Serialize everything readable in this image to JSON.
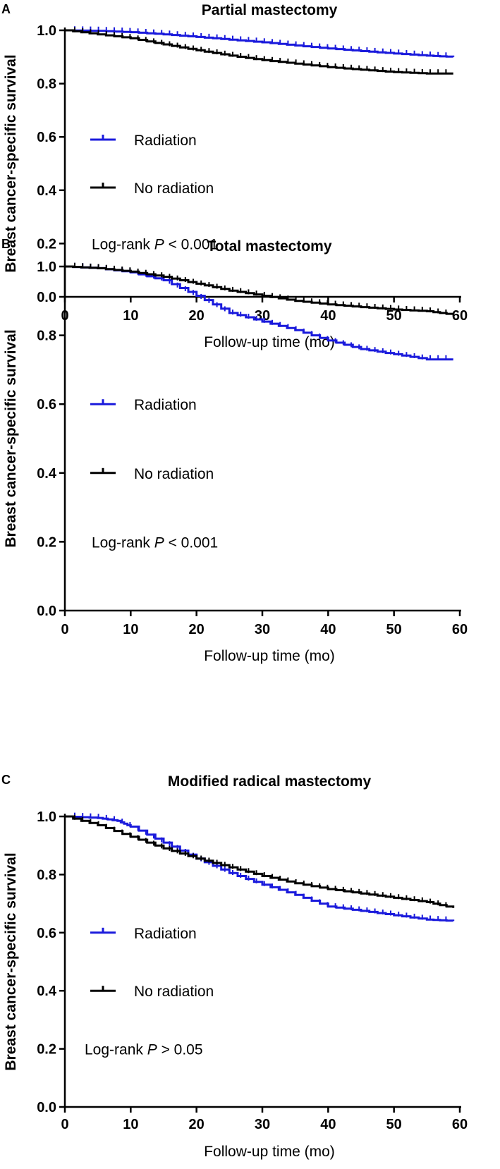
{
  "chart_data": [
    {
      "type": "line",
      "panel_label": "A",
      "title": "Partial mastectomy",
      "xlabel": "Follow-up time (mo)",
      "ylabel": "Breast cancer-specific survival",
      "xlim": [
        0,
        60
      ],
      "ylim": [
        0,
        1
      ],
      "x_ticks": [
        "0",
        "10",
        "20",
        "30",
        "40",
        "50",
        "60"
      ],
      "y_ticks": [
        "0.0",
        "0.2",
        "0.4",
        "0.6",
        "0.8",
        "1.0"
      ],
      "legend": {
        "placement": "middle-left"
      },
      "annotation": {
        "text": "Log-rank ",
        "italic": "P",
        "suffix": " < 0.001"
      },
      "series": [
        {
          "name": "Radiation",
          "color": "#1a1adc",
          "x": [
            0,
            5,
            10,
            15,
            20,
            25,
            30,
            35,
            40,
            45,
            50,
            55,
            59
          ],
          "y": [
            1.0,
            0.998,
            0.993,
            0.985,
            0.975,
            0.965,
            0.955,
            0.943,
            0.932,
            0.922,
            0.913,
            0.905,
            0.9
          ]
        },
        {
          "name": "No radiation",
          "color": "#000000",
          "x": [
            0,
            5,
            10,
            15,
            20,
            25,
            30,
            35,
            40,
            45,
            50,
            55,
            59
          ],
          "y": [
            1.0,
            0.985,
            0.97,
            0.947,
            0.925,
            0.905,
            0.888,
            0.875,
            0.862,
            0.852,
            0.843,
            0.838,
            0.838
          ]
        }
      ]
    },
    {
      "type": "line",
      "panel_label": "B",
      "title": "Total mastectomy",
      "xlabel": "Follow-up time (mo)",
      "ylabel": "Breast cancer-specific survival",
      "xlim": [
        0,
        60
      ],
      "ylim": [
        0,
        1
      ],
      "x_ticks": [
        "0",
        "10",
        "20",
        "30",
        "40",
        "50",
        "60"
      ],
      "y_ticks": [
        "0.0",
        "0.2",
        "0.4",
        "0.6",
        "0.8",
        "1.0"
      ],
      "legend": {
        "placement": "middle-left"
      },
      "annotation": {
        "text": "Log-rank ",
        "italic": "P",
        "suffix": " < 0.001"
      },
      "series": [
        {
          "name": "Radiation",
          "color": "#1a1adc",
          "x": [
            0,
            5,
            10,
            15,
            20,
            25,
            30,
            35,
            40,
            45,
            50,
            55,
            59
          ],
          "y": [
            1.0,
            0.995,
            0.983,
            0.96,
            0.915,
            0.865,
            0.84,
            0.815,
            0.785,
            0.76,
            0.745,
            0.73,
            0.73
          ]
        },
        {
          "name": "No radiation",
          "color": "#000000",
          "x": [
            0,
            5,
            10,
            15,
            20,
            25,
            30,
            35,
            40,
            45,
            50,
            55,
            59
          ],
          "y": [
            1.0,
            0.995,
            0.985,
            0.97,
            0.95,
            0.93,
            0.915,
            0.9,
            0.89,
            0.882,
            0.875,
            0.87,
            0.86
          ]
        }
      ]
    },
    {
      "type": "line",
      "panel_label": "C",
      "title": "Modified radical mastectomy",
      "xlabel": "Follow-up time (mo)",
      "ylabel": "Breast cancer-specific survival",
      "xlim": [
        0,
        60
      ],
      "ylim": [
        0,
        1
      ],
      "x_ticks": [
        "0",
        "10",
        "20",
        "30",
        "40",
        "50",
        "60"
      ],
      "y_ticks": [
        "0.0",
        "0.2",
        "0.4",
        "0.6",
        "0.8",
        "1.0"
      ],
      "legend": {
        "placement": "middle-left"
      },
      "annotation": {
        "text": "Log-rank ",
        "italic": "P",
        "suffix": " > 0.05"
      },
      "series": [
        {
          "name": "Radiation",
          "color": "#1a1adc",
          "x": [
            0,
            5,
            8,
            10,
            15,
            20,
            25,
            30,
            35,
            40,
            45,
            50,
            55,
            59
          ],
          "y": [
            1.0,
            0.995,
            0.985,
            0.965,
            0.91,
            0.855,
            0.805,
            0.765,
            0.73,
            0.69,
            0.675,
            0.66,
            0.645,
            0.64
          ]
        },
        {
          "name": "No radiation",
          "color": "#000000",
          "x": [
            0,
            5,
            10,
            15,
            20,
            25,
            30,
            35,
            40,
            45,
            50,
            55,
            59
          ],
          "y": [
            1.0,
            0.97,
            0.93,
            0.89,
            0.855,
            0.825,
            0.795,
            0.77,
            0.75,
            0.735,
            0.72,
            0.705,
            0.685
          ]
        }
      ]
    }
  ]
}
